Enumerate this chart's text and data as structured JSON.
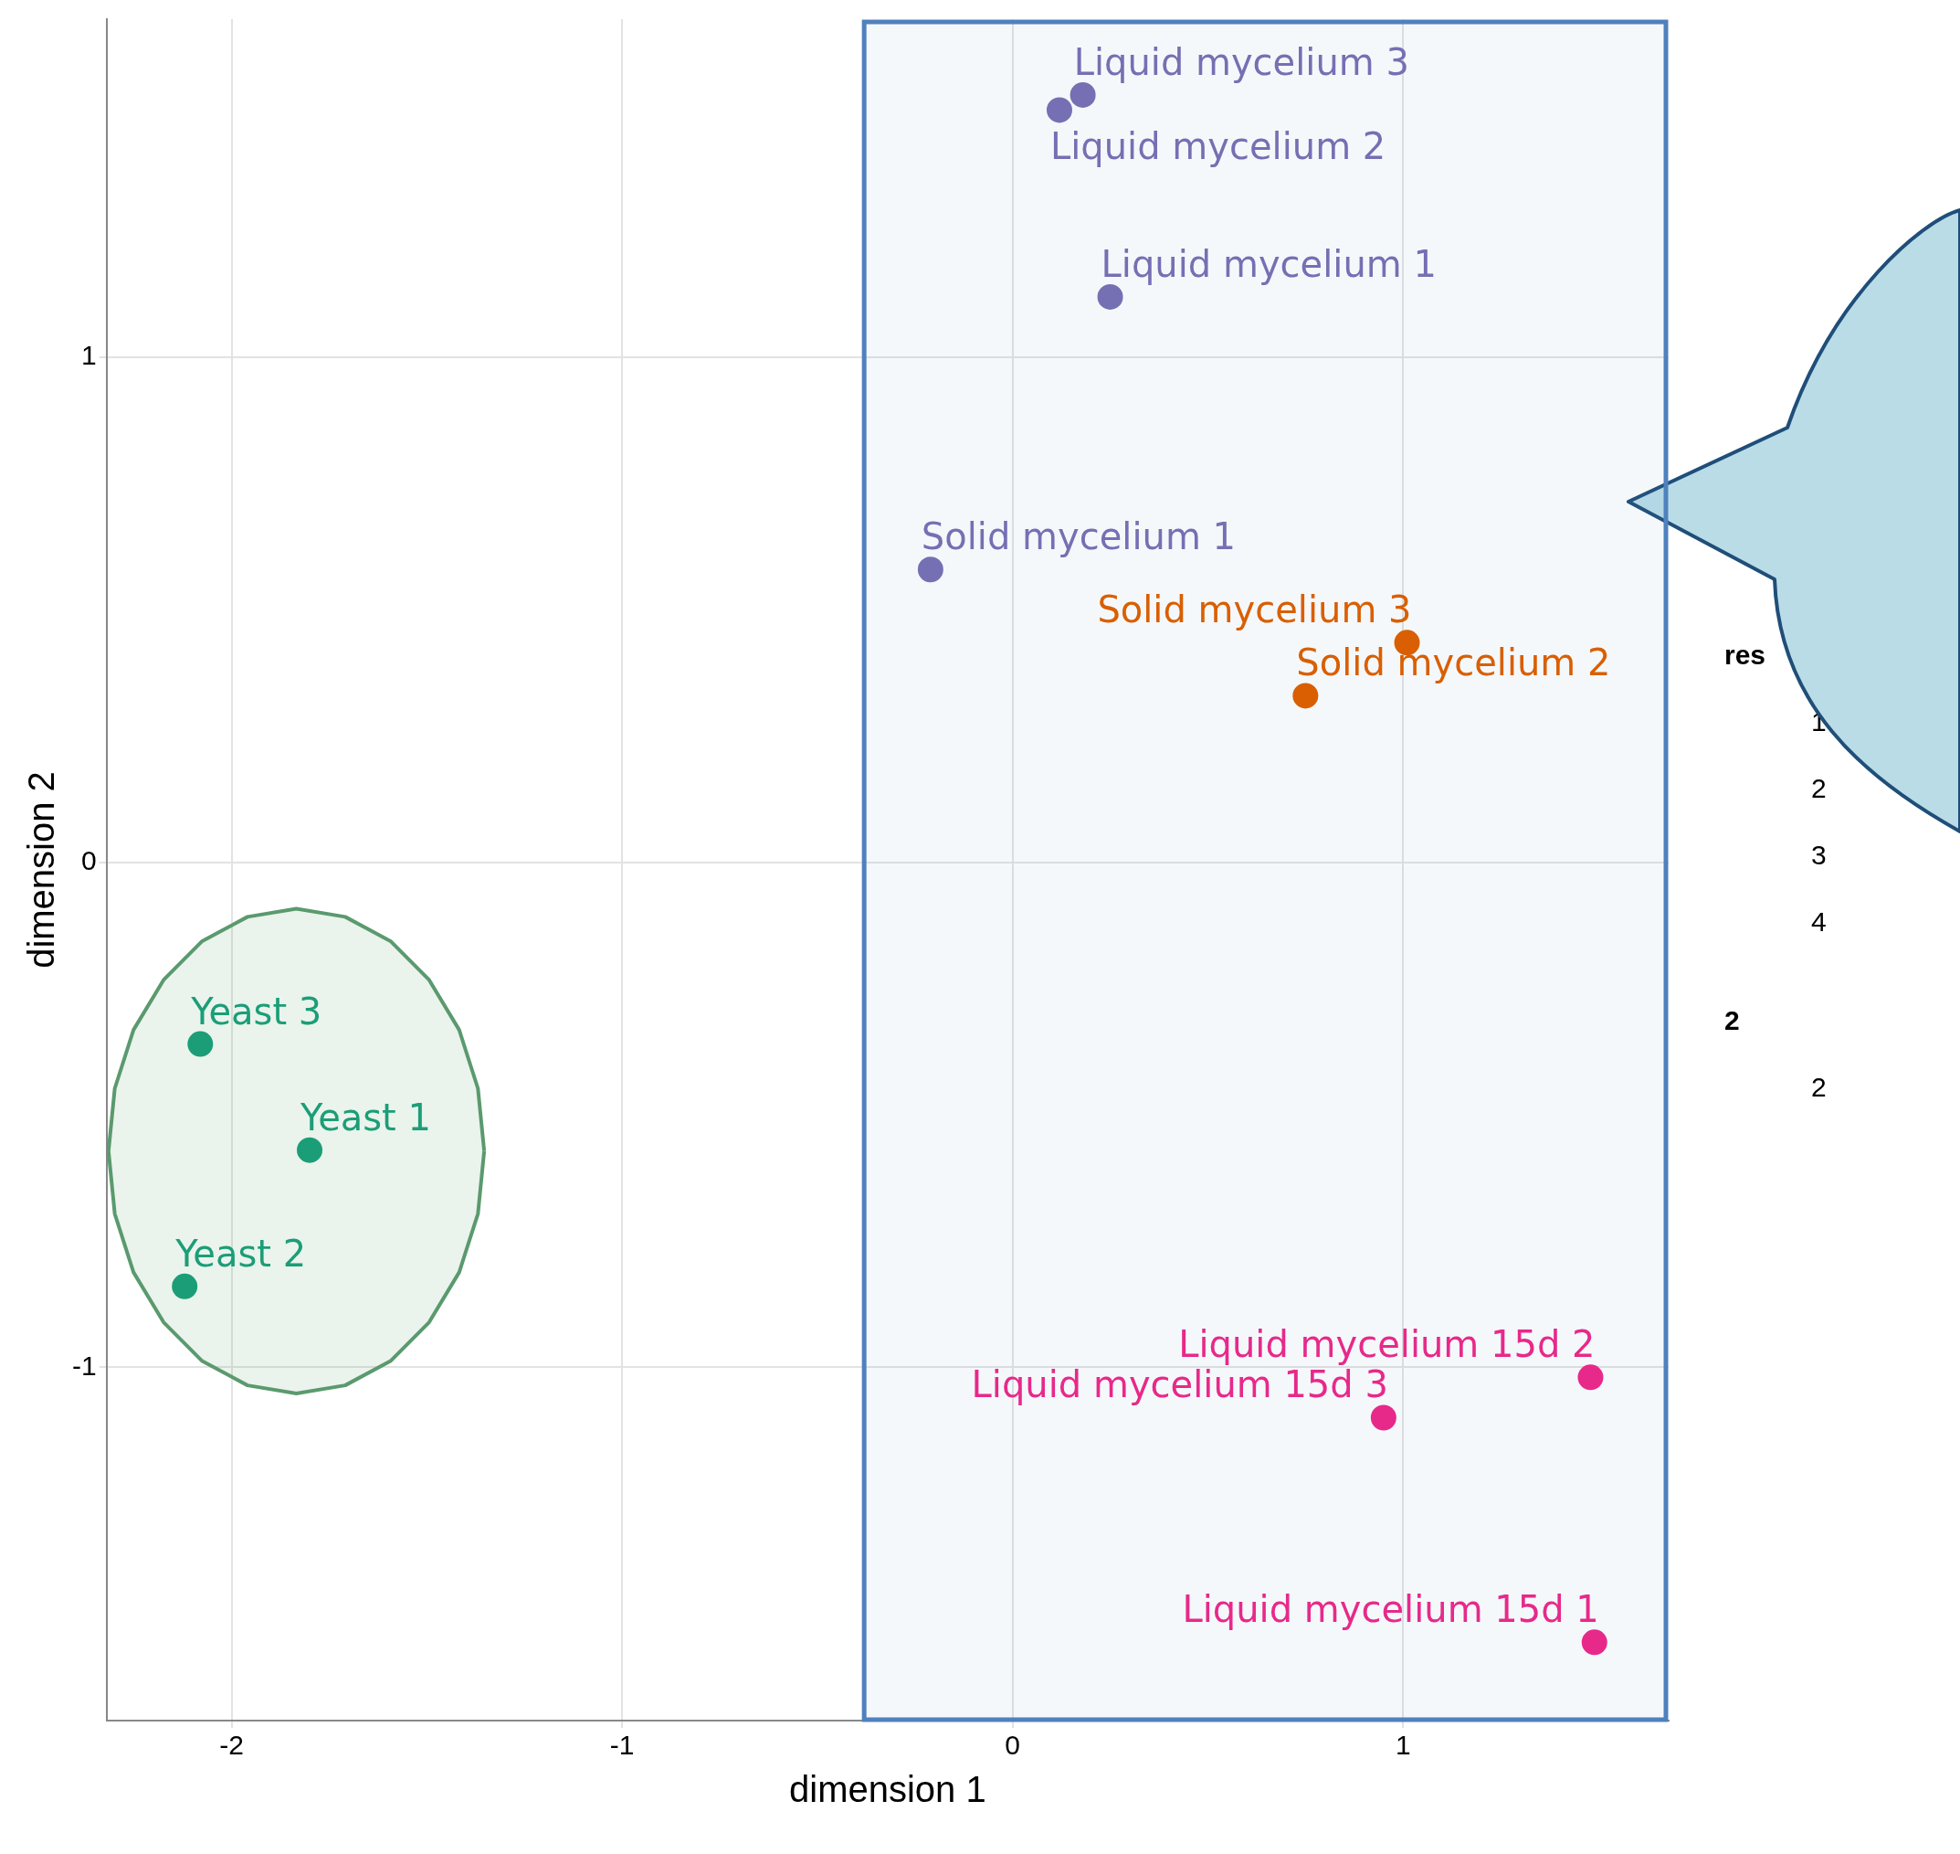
{
  "chart_data": {
    "type": "scatter",
    "xlabel": "dimension 1",
    "ylabel": "dimension 2",
    "xlim": [
      -2.32,
      1.68
    ],
    "ylim": [
      -1.7,
      1.67
    ],
    "xticks": [
      -2,
      -1,
      0,
      1
    ],
    "yticks": [
      -1,
      0,
      1
    ],
    "grid": true,
    "legend": false,
    "marker": "circle",
    "bands": [
      {
        "axis": "x",
        "from": -0.38,
        "to": 1.68,
        "color": "#4f81bd"
      }
    ],
    "series": [
      {
        "type": "area",
        "color": "#5a9a6e",
        "marker": "none",
        "x": [
          -1.353,
          -1.369,
          -1.417,
          -1.494,
          -1.593,
          -1.709,
          -1.834,
          -1.959,
          -2.075,
          -2.174,
          -2.251,
          -2.299,
          -2.315,
          -2.299,
          -2.251,
          -2.174,
          -2.075,
          -1.959,
          -1.834,
          -1.709,
          -1.593,
          -1.494,
          -1.417,
          -1.369,
          -1.353
        ],
        "values": [
          -0.572,
          -0.448,
          -0.332,
          -0.233,
          -0.156,
          -0.108,
          -0.092,
          -0.108,
          -0.156,
          -0.233,
          -0.332,
          -0.448,
          -0.572,
          -0.696,
          -0.812,
          -0.911,
          -0.988,
          -1.036,
          -1.052,
          -1.036,
          -0.988,
          -0.911,
          -0.812,
          -0.696,
          -0.572
        ]
      },
      {
        "color": "#7570b3",
        "x": [
          0.18,
          0.12,
          0.25,
          -0.21
        ],
        "values": [
          1.52,
          1.49,
          1.12,
          0.58
        ],
        "value_labels": [
          "Liquid mycelium 3",
          "Liquid mycelium 2",
          "Liquid mycelium 1",
          "Solid mycelium 1"
        ]
      },
      {
        "color": "#d95f02",
        "x": [
          1.01,
          0.75
        ],
        "values": [
          0.435,
          0.33
        ],
        "value_labels": [
          "Solid mycelium 3",
          "Solid mycelium 2"
        ]
      },
      {
        "color": "#1b9e77",
        "x": [
          -2.08,
          -1.8,
          -2.12
        ],
        "values": [
          -0.36,
          -0.57,
          -0.84
        ],
        "value_labels": [
          "Yeast 3",
          "Yeast 1",
          "Yeast 2"
        ]
      },
      {
        "color": "#e7298a",
        "x": [
          1.48,
          0.95,
          1.49
        ],
        "values": [
          -1.02,
          -1.1,
          -1.545
        ],
        "value_labels": [
          "Liquid mycelium 15d 2",
          "Liquid mycelium 15d 3",
          "Liquid mycelium 15d 1"
        ]
      }
    ],
    "annotations": [
      "res",
      "1",
      "2",
      "3",
      "4",
      "2",
      "2"
    ]
  }
}
